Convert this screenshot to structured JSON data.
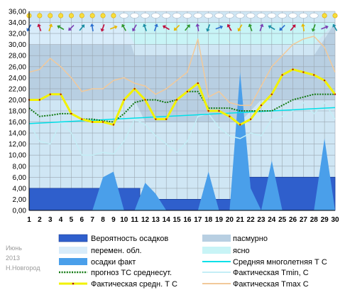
{
  "caption": {
    "month": "Июнь",
    "year": "2013",
    "city": "Н.Новгород"
  },
  "colors": {
    "sky": "#cfe6f4",
    "overcast": "#b8cfe2",
    "variable": "#d8ecfa",
    "clear": "#c8f4f6",
    "precip_prob": "#2f5fcc",
    "precip_fact": "#4a9fea",
    "normal": "#00e0e8",
    "forecast": "#137a13",
    "actual_mean": "#f2f200",
    "actual_min": "#c4eef6",
    "actual_max": "#f2c99a"
  },
  "chart_data": {
    "type": "line",
    "x": [
      1,
      2,
      3,
      4,
      5,
      6,
      7,
      8,
      9,
      10,
      11,
      12,
      13,
      14,
      15,
      16,
      17,
      18,
      19,
      20,
      21,
      22,
      23,
      24,
      25,
      26,
      27,
      28,
      29,
      30
    ],
    "ylim": [
      0,
      36
    ],
    "y_ticks": [
      "0,00",
      "2,00",
      "4,00",
      "6,00",
      "8,00",
      "10,00",
      "12,00",
      "14,00",
      "16,00",
      "18,00",
      "20,00",
      "22,00",
      "24,00",
      "26,00",
      "28,00",
      "30,00",
      "32,00",
      "34,00",
      "36,00"
    ],
    "grid": true,
    "legend_position": "bottom",
    "series": [
      {
        "name": "Вероятность осадков",
        "kind": "area",
        "color": "#2f5fcc",
        "values": [
          4,
          4,
          4,
          4,
          4,
          4,
          4,
          4,
          4,
          4,
          4,
          2,
          2,
          2,
          2,
          2,
          2,
          2,
          2,
          2,
          2,
          6,
          6,
          6,
          6,
          6,
          6,
          6,
          6,
          6
        ]
      },
      {
        "name": "осадки факт",
        "kind": "area",
        "color": "#4a9fea",
        "values": [
          0,
          0,
          0,
          0,
          0,
          0,
          0,
          6,
          7,
          0,
          0,
          5,
          3,
          0,
          0,
          0,
          0,
          7,
          0,
          0,
          25,
          4,
          0,
          9,
          0,
          0,
          0,
          0,
          13,
          0
        ]
      },
      {
        "name": "Средняя многолетняя Т С",
        "kind": "line",
        "color": "#00e0e8",
        "values": [
          15.7,
          15.8,
          15.9,
          16.0,
          16.1,
          16.2,
          16.3,
          16.4,
          16.5,
          16.6,
          16.7,
          16.8,
          16.9,
          17.0,
          17.1,
          17.2,
          17.3,
          17.4,
          17.5,
          17.6,
          17.7,
          17.8,
          17.9,
          18.0,
          18.1,
          18.2,
          18.3,
          18.4,
          18.5,
          18.6
        ]
      },
      {
        "name": "прогноз ТС среднесут.",
        "kind": "line",
        "color": "#137a13",
        "values": [
          18.5,
          17.0,
          17.2,
          17.5,
          17.5,
          16.5,
          16.5,
          16.2,
          16.0,
          17.5,
          19.5,
          20.0,
          20.0,
          19.5,
          20.0,
          21.5,
          21.5,
          18.5,
          18.5,
          18.5,
          18.0,
          18.0,
          18.0,
          18.0,
          19.0,
          20.0,
          20.5,
          21.0,
          21.0,
          21.0
        ]
      },
      {
        "name": "Фактическая Tmin, C",
        "kind": "line",
        "color": "#c4eef6",
        "values": [
          15.8,
          12.5,
          12.0,
          16.0,
          14.0,
          10.0,
          10.0,
          10.5,
          10.2,
          12.5,
          16.5,
          15.5,
          13.5,
          12.0,
          10.5,
          12.5,
          17.0,
          17.5,
          15.0,
          13.5,
          13.0,
          14.0,
          13.5,
          16.5,
          17.0,
          18.0,
          19.5,
          17.5,
          19.5,
          16.5
        ]
      },
      {
        "name": "Фактическая Tmax C",
        "kind": "line",
        "color": "#f2c99a",
        "values": [
          25.0,
          25.5,
          27.5,
          26.0,
          24.0,
          21.5,
          22.0,
          22.0,
          23.5,
          24.0,
          23.0,
          22.5,
          21.0,
          22.0,
          23.5,
          25.0,
          31.0,
          20.5,
          21.5,
          19.5,
          19.0,
          19.0,
          22.5,
          26.0,
          28.0,
          30.0,
          31.0,
          31.5,
          29.5,
          25.0
        ]
      },
      {
        "name": "Фактическая средн. Т С",
        "kind": "line",
        "color": "#f2f200",
        "values": [
          20.0,
          20.0,
          21.0,
          21.0,
          17.5,
          16.5,
          16.0,
          16.0,
          15.5,
          20.0,
          22.0,
          20.0,
          16.5,
          16.5,
          20.0,
          21.5,
          23.0,
          18.0,
          18.0,
          17.0,
          15.5,
          16.5,
          19.0,
          21.0,
          24.5,
          25.5,
          25.0,
          24.5,
          23.5,
          21.0
        ]
      }
    ],
    "cloud_bands": {
      "legend": [
        "пасмурно",
        "перемен. обл.",
        "ясно"
      ]
    }
  }
}
